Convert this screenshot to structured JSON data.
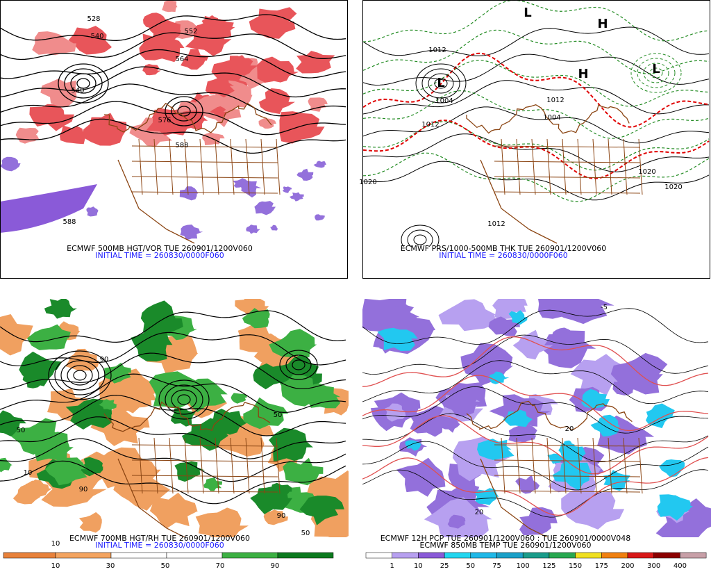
{
  "panels": [
    {
      "caption": "ECMWF 500MB HGT/VOR TUE 260901/1200V060",
      "second_line": "INITIAL TIME = 260830/0000F060",
      "labels": [
        "528",
        "540",
        "552",
        "564",
        "540",
        "576",
        "588",
        "588"
      ]
    },
    {
      "caption": "ECMWF PRS/1000-500MB THK TUE 260901/1200V060",
      "second_line": "INITIAL TIME = 260830/0000F060",
      "labels": [
        "1012",
        "1004",
        "1012",
        "1004",
        "1012",
        "1020",
        "1020",
        "1020",
        "1012",
        "L",
        "H",
        "L",
        "H",
        "L"
      ]
    },
    {
      "caption": "ECMWF 700MB HGT/RH TUE 260901/1200V060",
      "second_line": "INITIAL TIME = 260830/0000F060",
      "labels": [
        "50",
        "10",
        "90",
        "90",
        "50",
        "50",
        "10",
        "90"
      ]
    },
    {
      "caption": "ECMWF 12H PCP TUE 260901/1200V060 : TUE 260901/0000V048",
      "second_line": "ECMWF 850MB TEMP TUE 260901/1200V060",
      "labels": [
        "-5",
        "20",
        "20"
      ]
    }
  ],
  "colorbars": [
    {
      "labels": [
        "10",
        "30",
        "50",
        "70",
        "90"
      ],
      "colors": [
        "#e8813a",
        "#f4a460",
        "#ffffff",
        "#ffffff",
        "#3cb043",
        "#0b7a1e"
      ]
    },
    {
      "labels": [
        "1",
        "10",
        "25",
        "50",
        "75",
        "100",
        "125",
        "150",
        "175",
        "200",
        "300",
        "400"
      ],
      "colors": [
        "#ffffff",
        "#b7a0f0",
        "#8a5ad8",
        "#22d6f0",
        "#1fb8e8",
        "#1aa0c8",
        "#1a9c8a",
        "#28a850",
        "#f0e020",
        "#f08010",
        "#d81818",
        "#8b0000",
        "#c8a0a8"
      ]
    }
  ]
}
